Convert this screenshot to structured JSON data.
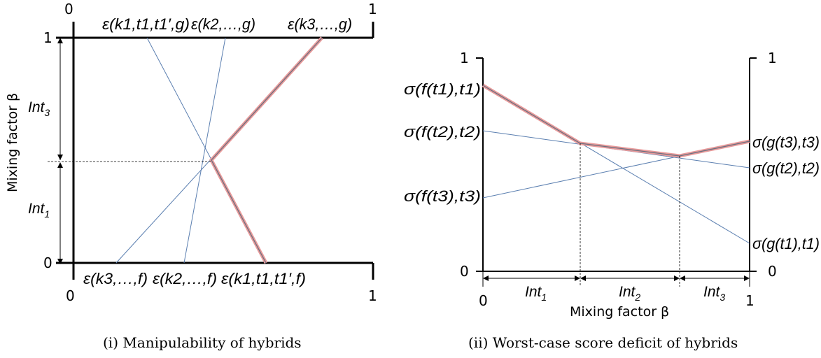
{
  "left_panel": {
    "top_left_tick": "0",
    "top_right_tick": "1",
    "bottom_left_tick": "0",
    "bottom_right_tick": "1",
    "y_top_tick": "1",
    "y_bottom_tick": "0",
    "y_axis_title": "Mixing factor β",
    "interval_upper": "Int",
    "interval_upper_sub": "3",
    "interval_lower": "Int",
    "interval_lower_sub": "1",
    "top_labels": [
      "ε(k1,t1,t1′,g)",
      "ε(k2,…,g)",
      "ε(k3,…,g)"
    ],
    "bottom_labels": [
      "ε(k3,…,f)",
      "ε(k2,…,f)",
      "ε(k1,t1,t1′,f)"
    ],
    "caption": "(i) Manipulability of hybrids"
  },
  "right_panel": {
    "left_top_tick": "1",
    "left_bottom_tick": "0",
    "right_top_tick": "1",
    "right_bottom_tick": "0",
    "x_left_tick": "0",
    "x_right_tick": "1",
    "x_axis_title": "Mixing factor β",
    "intervals": [
      {
        "name": "Int",
        "sub": "1"
      },
      {
        "name": "Int",
        "sub": "2"
      },
      {
        "name": "Int",
        "sub": "3"
      }
    ],
    "left_labels": [
      "σ(f(t1),t1)",
      "σ(f(t2),t2)",
      "σ(f(t3),t3)"
    ],
    "right_labels": [
      "σ(g(t3),t3)",
      "σ(g(t2),t2)",
      "σ(g(t1),t1)"
    ],
    "caption": "(ii) Worst-case score deficit of hybrids"
  },
  "colors": {
    "thin_line": "#5b7fb0",
    "envelope": "#e89a9a",
    "envelope_core": "#6a7080",
    "axis": "#000000"
  }
}
